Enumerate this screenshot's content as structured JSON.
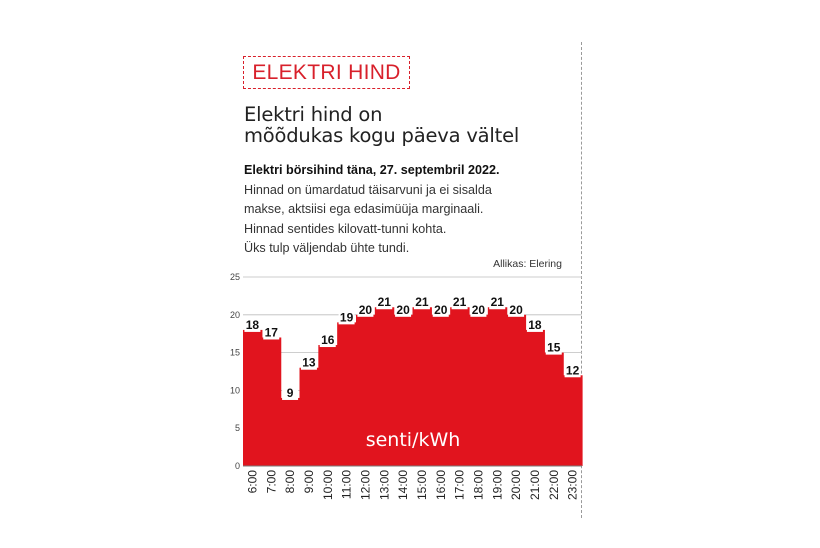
{
  "kicker": "ELEKTRI HIND",
  "headline": {
    "line1": "Elektri hind on",
    "line2": "mõõdukas kogu päeva vältel"
  },
  "description": {
    "lead": "Elektri börsihind täna, 27. septembril 2022.",
    "lines": [
      "Hinnad on ümardatud täisarvuni ja ei sisalda",
      "makse, aktsiisi ega edasimüüja marginaali.",
      "Hinnad sentides kilovatt-tunni kohta.",
      "Üks tulp väljendab ühte tundi."
    ]
  },
  "source": "Allikas: Elering",
  "colors": {
    "accent": "#d8202b",
    "bar": "#e1141e"
  },
  "chart_data": {
    "type": "area",
    "title": "",
    "xlabel": "",
    "ylabel": "",
    "unit_label": "senti/kWh",
    "ylim": [
      0,
      25
    ],
    "yticks": [
      0,
      5,
      10,
      15,
      20,
      25
    ],
    "grid": true,
    "categories": [
      "6:00",
      "7:00",
      "8:00",
      "9:00",
      "10:00",
      "11:00",
      "12:00",
      "13:00",
      "14:00",
      "15:00",
      "16:00",
      "17:00",
      "18:00",
      "19:00",
      "20:00",
      "21:00",
      "22:00",
      "23:00"
    ],
    "values": [
      18,
      17,
      9,
      13,
      16,
      19,
      20,
      21,
      20,
      21,
      20,
      21,
      20,
      21,
      20,
      18,
      15,
      12
    ]
  }
}
